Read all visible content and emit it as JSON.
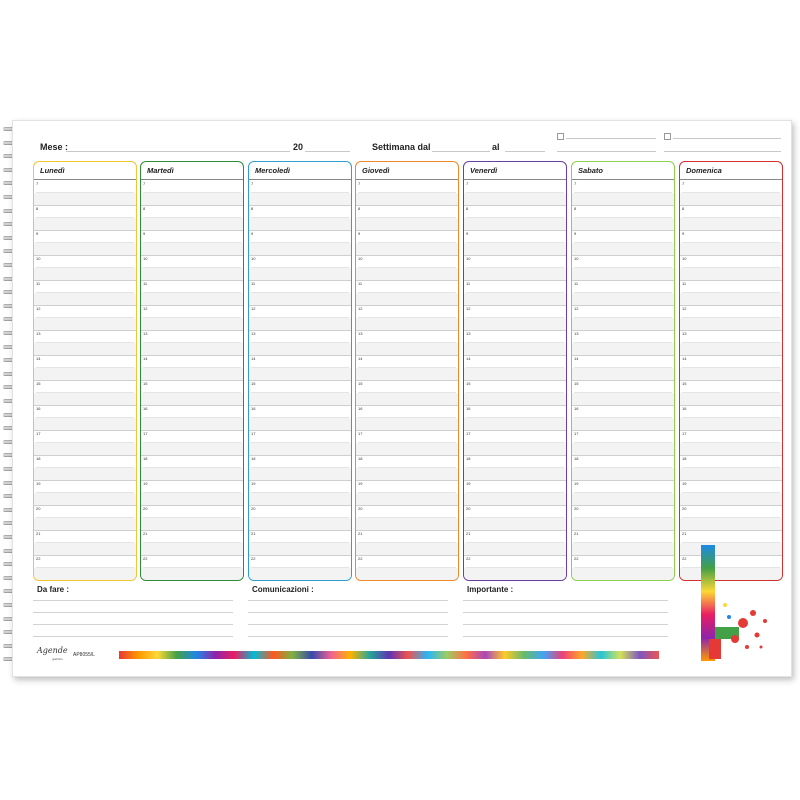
{
  "header": {
    "month_label": "Mese :",
    "year_label": "20",
    "week_label": "Settimana  dal",
    "to_label": "al"
  },
  "days": [
    {
      "name": "Lunedì",
      "color": "#f2c531"
    },
    {
      "name": "Martedì",
      "color": "#2e8b3a"
    },
    {
      "name": "Mercoledì",
      "color": "#2f9fd0"
    },
    {
      "name": "Giovedì",
      "color": "#ee8a2a"
    },
    {
      "name": "Venerdì",
      "color": "#6b3fa0"
    },
    {
      "name": "Sabato",
      "color": "#8fcf4a"
    },
    {
      "name": "Domenica",
      "color": "#d32f2f"
    }
  ],
  "hours": [
    "7",
    "8",
    "9",
    "10",
    "11",
    "12",
    "13",
    "14",
    "15",
    "16",
    "17",
    "18",
    "19",
    "20",
    "21",
    "22"
  ],
  "notes": {
    "todo_label": "Da fare :",
    "comms_label": "Comunicazioni :",
    "important_label": "Importante :"
  },
  "footer": {
    "brand": "Agende",
    "brand_sub": "grafiche",
    "product_code": "AP8055/L"
  }
}
